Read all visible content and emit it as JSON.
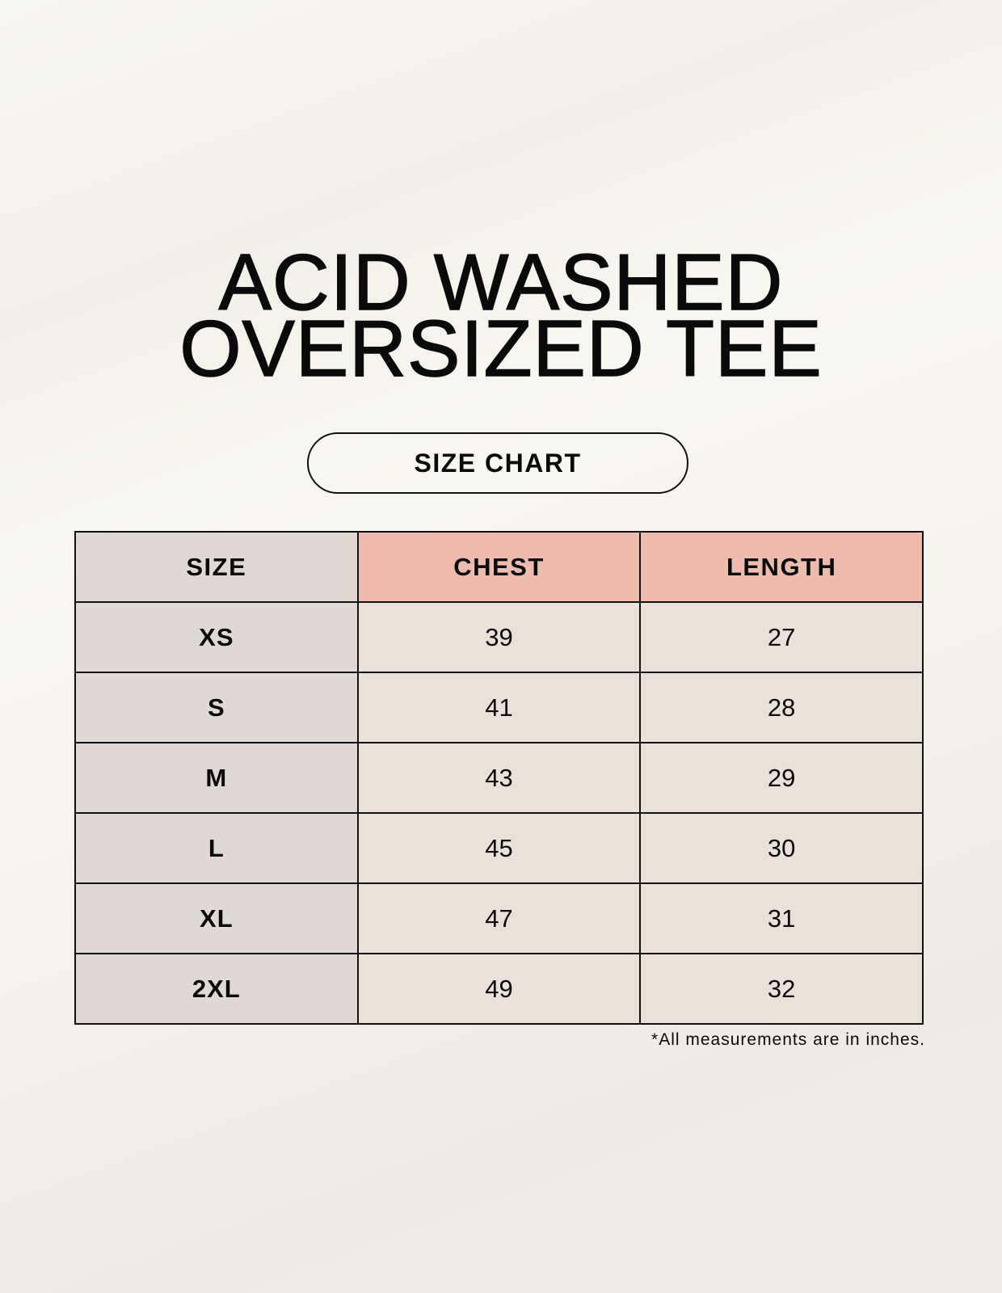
{
  "title_line1": "ACID WASHED",
  "title_line2": "OVERSIZED TEE",
  "badge": "SIZE CHART",
  "table": {
    "headers": [
      "SIZE",
      "CHEST",
      "LENGTH"
    ],
    "header_colors": {
      "size": "#e0d8d3",
      "measure": "#edbcae"
    },
    "rows": [
      [
        "XS",
        "39",
        "27"
      ],
      [
        "S",
        "41",
        "28"
      ],
      [
        "M",
        "43",
        "29"
      ],
      [
        "L",
        "45",
        "30"
      ],
      [
        "XL",
        "47",
        "31"
      ],
      [
        "2XL",
        "49",
        "32"
      ]
    ]
  },
  "footnote": "*All measurements are in inches."
}
